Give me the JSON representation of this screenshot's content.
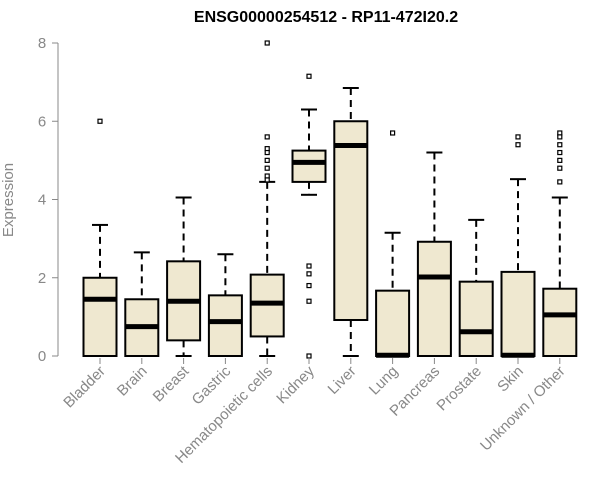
{
  "chart_data": {
    "type": "boxplot",
    "title": "ENSG00000254512 - RP11-472I20.2",
    "xlabel": "",
    "ylabel": "Expression",
    "ylim": [
      0,
      8
    ],
    "yticks": [
      0,
      2,
      4,
      6,
      8
    ],
    "grid": false,
    "box_fill": "#efe8d0",
    "box_stroke": "#000000",
    "categories": [
      "Bladder",
      "Brain",
      "Breast",
      "Gastric",
      "Hematopoietic cells",
      "Kidney",
      "Liver",
      "Lung",
      "Pancreas",
      "Prostate",
      "Skin",
      "Unknown / Other"
    ],
    "boxes": [
      {
        "category": "Bladder",
        "whisker_low": 0,
        "q1": 0,
        "median": 1.45,
        "q3": 2.0,
        "whisker_high": 3.35,
        "outliers": [
          6.0
        ]
      },
      {
        "category": "Brain",
        "whisker_low": 0,
        "q1": 0,
        "median": 0.75,
        "q3": 1.45,
        "whisker_high": 2.65,
        "outliers": []
      },
      {
        "category": "Breast",
        "whisker_low": 0,
        "q1": 0.4,
        "median": 1.4,
        "q3": 2.42,
        "whisker_high": 4.05,
        "outliers": []
      },
      {
        "category": "Gastric",
        "whisker_low": 0,
        "q1": 0,
        "median": 0.88,
        "q3": 1.55,
        "whisker_high": 2.6,
        "outliers": []
      },
      {
        "category": "Hematopoietic cells",
        "whisker_low": 0,
        "q1": 0.5,
        "median": 1.35,
        "q3": 2.08,
        "whisker_high": 4.45,
        "outliers": [
          8.0,
          5.6,
          5.3,
          5.2,
          5.0,
          4.8,
          4.6,
          4.5
        ]
      },
      {
        "category": "Kidney",
        "whisker_low": 4.12,
        "q1": 4.45,
        "median": 4.95,
        "q3": 5.25,
        "whisker_high": 6.3,
        "outliers": [
          7.15,
          2.3,
          2.1,
          1.8,
          1.4,
          0.0
        ]
      },
      {
        "category": "Liver",
        "whisker_low": 0,
        "q1": 0.92,
        "median": 5.38,
        "q3": 6.0,
        "whisker_high": 6.85,
        "outliers": []
      },
      {
        "category": "Lung",
        "whisker_low": 0,
        "q1": 0,
        "median": 0.02,
        "q3": 1.67,
        "whisker_high": 3.15,
        "outliers": [
          5.7
        ]
      },
      {
        "category": "Pancreas",
        "whisker_low": 0,
        "q1": 0,
        "median": 2.02,
        "q3": 2.92,
        "whisker_high": 5.2,
        "outliers": []
      },
      {
        "category": "Prostate",
        "whisker_low": 0,
        "q1": 0,
        "median": 0.62,
        "q3": 1.9,
        "whisker_high": 3.48,
        "outliers": []
      },
      {
        "category": "Skin",
        "whisker_low": 0,
        "q1": 0,
        "median": 0.02,
        "q3": 2.15,
        "whisker_high": 4.52,
        "outliers": [
          5.6,
          5.4
        ]
      },
      {
        "category": "Unknown / Other",
        "whisker_low": 0,
        "q1": 0,
        "median": 1.05,
        "q3": 1.72,
        "whisker_high": 4.05,
        "outliers": [
          5.7,
          5.6,
          5.4,
          5.2,
          5.0,
          4.8,
          4.45
        ]
      }
    ]
  }
}
